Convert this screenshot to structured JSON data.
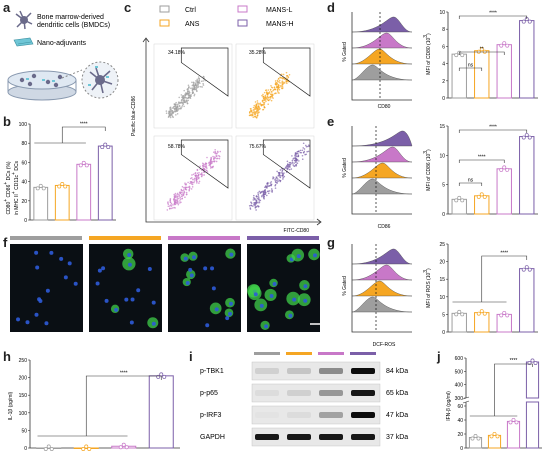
{
  "colors": {
    "ctrl": "#9e9e9e",
    "ans": "#f5a623",
    "mans_l": "#c878c8",
    "mans_h": "#7b5fa8",
    "fluor_bg": "#0a0f14"
  },
  "panels": {
    "a": {
      "letter": "a",
      "bmdc_label_1": "Bone marrow-derived",
      "bmdc_label_2": "dendritic cells (BMDCs)",
      "nano_label": "Nano-adjuvants"
    },
    "b": {
      "letter": "b",
      "ylabel_1": "CD80",
      "ylabel_1_sup": "+",
      "ylabel_2": "CD86",
      "ylabel_2_sup": "+",
      "ylabel_3": "DCs (%)",
      "ylabel_4": "in MHC II",
      "ylabel_4_sup": "+",
      "ylabel_5": "CD11c",
      "ylabel_5_sup": "+",
      "ylabel_6": "DCs",
      "sig": "****"
    },
    "c": {
      "letter": "c",
      "legend": [
        "Ctrl",
        "ANS",
        "MANS-L",
        "MANS-H"
      ],
      "ylabel": "Pacific blue-CD86",
      "xlabel": "FITC-CD80",
      "quads": [
        "34.18%",
        "35.28%",
        "58.78%",
        "75.67%"
      ]
    },
    "d": {
      "letter": "d",
      "ylabel_hist": "% Gated",
      "xlabel_hist": "CD80",
      "ylabel_bar": "MFI of CD80 (10",
      "ylabel_bar_sup": "3",
      "ylabel_bar_end": ")",
      "sig_ns": "ns",
      "sig_2": "**",
      "sig_4": "****"
    },
    "e": {
      "letter": "e",
      "ylabel_hist": "% Gated",
      "xlabel_hist": "CD86",
      "ylabel_bar": "MFI of CD86 (10",
      "ylabel_bar_sup": "3",
      "ylabel_bar_end": ")",
      "sig_ns": "ns",
      "sig_4a": "****",
      "sig_4b": "****"
    },
    "f": {
      "letter": "f"
    },
    "g": {
      "letter": "g",
      "ylabel_hist": "% Gated",
      "xlabel_hist": "DCF-ROS",
      "ylabel_bar": "MFI of ROS (10",
      "ylabel_bar_sup": "3",
      "ylabel_bar_end": ")",
      "sig": "****"
    },
    "h": {
      "letter": "h",
      "ylabel": "IL-1β (pg/ml)",
      "sig": "****"
    },
    "i": {
      "letter": "i",
      "rows": [
        "p-TBK1",
        "p-p65",
        "p-IRF3",
        "GAPDH"
      ],
      "sizes": [
        "84 kDa",
        "65 kDa",
        "47 kDa",
        "37 kDa"
      ]
    },
    "j": {
      "letter": "j",
      "ylabel": "IFN-β (pg/ml)",
      "sig": "****"
    }
  },
  "chart_data": [
    {
      "panel": "b",
      "type": "bar",
      "categories": [
        "Ctrl",
        "ANS",
        "MANS-L",
        "MANS-H"
      ],
      "values": [
        34,
        36,
        58,
        77
      ],
      "ylim": [
        0,
        100
      ],
      "yticks": [
        "0",
        "20",
        "40",
        "60",
        "80",
        "100"
      ]
    },
    {
      "panel": "d",
      "type": "bar",
      "categories": [
        "Ctrl",
        "ANS",
        "MANS-L",
        "MANS-H"
      ],
      "values": [
        5.1,
        5.5,
        6.2,
        9.0
      ],
      "ylim": [
        0,
        10
      ],
      "yticks": [
        "0",
        "2",
        "4",
        "6",
        "8",
        "10"
      ]
    },
    {
      "panel": "e",
      "type": "bar",
      "categories": [
        "Ctrl",
        "ANS",
        "MANS-L",
        "MANS-H"
      ],
      "values": [
        2.5,
        3.1,
        7.7,
        13.2
      ],
      "ylim": [
        0,
        15
      ],
      "yticks": [
        "0",
        "5",
        "10",
        "15"
      ]
    },
    {
      "panel": "g",
      "type": "bar",
      "categories": [
        "Ctrl",
        "ANS",
        "MANS-L",
        "MANS-H"
      ],
      "values": [
        5.3,
        5.5,
        5.0,
        18.0
      ],
      "ylim": [
        0,
        25
      ],
      "yticks": [
        "0",
        "5",
        "10",
        "15",
        "20",
        "25"
      ]
    },
    {
      "panel": "h",
      "type": "bar",
      "categories": [
        "Ctrl",
        "ANS",
        "MANS-L",
        "MANS-H"
      ],
      "values": [
        0,
        0,
        5,
        205
      ],
      "ylim": [
        0,
        250
      ],
      "yticks": [
        "0",
        "50",
        "100",
        "150",
        "200",
        "250"
      ]
    },
    {
      "panel": "j",
      "type": "bar",
      "categories": [
        "Ctrl",
        "ANS",
        "MANS-L",
        "MANS-H"
      ],
      "values": [
        15,
        18,
        38,
        570
      ],
      "ylim": [
        0,
        600
      ],
      "yticks": [
        "0",
        "20",
        "40",
        "60",
        "300",
        "400",
        "500",
        "600"
      ]
    }
  ]
}
